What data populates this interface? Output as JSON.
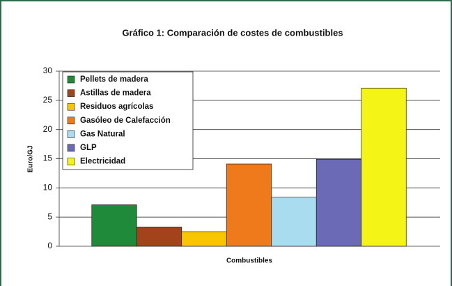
{
  "chart_data": {
    "type": "bar",
    "title": "Gráfico 1: Comparación de costes de combustibles",
    "x_label": "Combustibles",
    "y_label": "Euro/GJ",
    "series": [
      {
        "name": "Pellets de madera",
        "color": "#1f8a3a",
        "values": [
          7.1
        ]
      },
      {
        "name": "Astillas de madera",
        "color": "#a3431c",
        "values": [
          3.3
        ]
      },
      {
        "name": "Residuos agrícolas",
        "color": "#f7c600",
        "values": [
          2.5
        ]
      },
      {
        "name": "Gasóleo de Calefacción",
        "color": "#ef7a1c",
        "values": [
          14.1
        ]
      },
      {
        "name": "Gas Natural",
        "color": "#a8dcee",
        "values": [
          8.4
        ]
      },
      {
        "name": "GLP",
        "color": "#6a6ab6",
        "values": [
          14.9
        ]
      },
      {
        "name": "Electricidad",
        "color": "#f4f416",
        "values": [
          27.1
        ]
      }
    ],
    "ylim": [
      0,
      30
    ],
    "yticks": [
      0,
      5,
      10,
      15,
      20,
      25,
      30
    ],
    "grid": true,
    "legend": "upper left"
  }
}
